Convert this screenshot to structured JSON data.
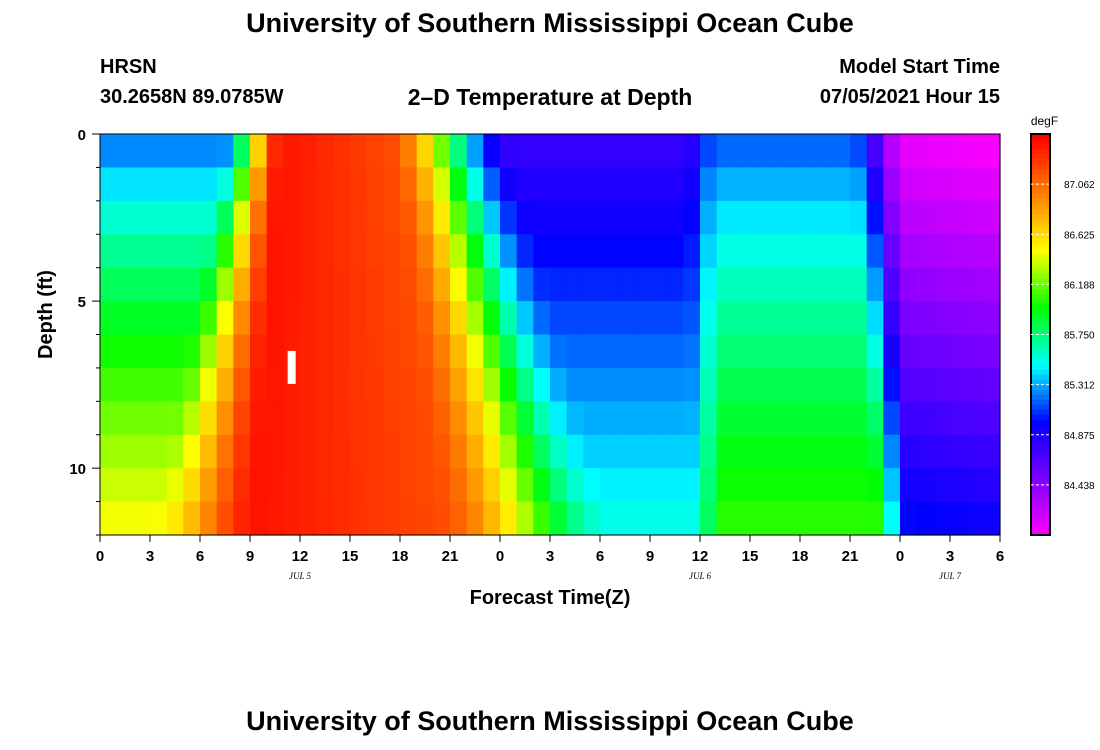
{
  "header": {
    "title": "University of Southern Mississippi Ocean Cube",
    "station": "HRSN",
    "coordinates": "30.2658N  89.0785W",
    "plot_title": "2–D Temperature at Depth",
    "model_start_label": "Model Start Time",
    "model_start_value": "07/05/2021 Hour 15"
  },
  "footer": {
    "title": "University of Southern Mississippi Ocean Cube"
  },
  "chart_data": {
    "type": "heatmap",
    "title": "2–D Temperature at Depth",
    "xlabel": "Forecast Time(Z)",
    "ylabel": "Depth (ft)",
    "x_ticks": [
      "0",
      "3",
      "6",
      "9",
      "12",
      "15",
      "18",
      "21",
      "0",
      "3",
      "6",
      "9",
      "12",
      "15",
      "18",
      "21",
      "0",
      "3",
      "6"
    ],
    "date_labels": [
      {
        "label": "JUL 5",
        "at_tick": 4
      },
      {
        "label": "JUL 6",
        "at_tick": 12
      },
      {
        "label": "JUL 7",
        "at_tick": 17
      }
    ],
    "y_ticks": [
      "0",
      "5",
      "10"
    ],
    "ylim": [
      0,
      12
    ],
    "x_range_hours": [
      0,
      54
    ],
    "colorbar": {
      "unit": "degF",
      "tick_labels": [
        "87.062",
        "86.625",
        "86.188",
        "85.750",
        "85.312",
        "84.875",
        "84.438"
      ],
      "colors": [
        "#ff0000",
        "#ff8000",
        "#ffff00",
        "#00ff00",
        "#00ffff",
        "#0000ff",
        "#8000ff",
        "#ff00ff"
      ]
    },
    "grid": false,
    "series": [
      {
        "depths": [
          0.5,
          1.5,
          2.5,
          3.5,
          4.5,
          5.5,
          6.5,
          7.5,
          8.5,
          9.5,
          10.5,
          11.5
        ],
        "hours_every": 1
      }
    ],
    "marker_hour": 11.5,
    "marker_depth": 7.0
  }
}
